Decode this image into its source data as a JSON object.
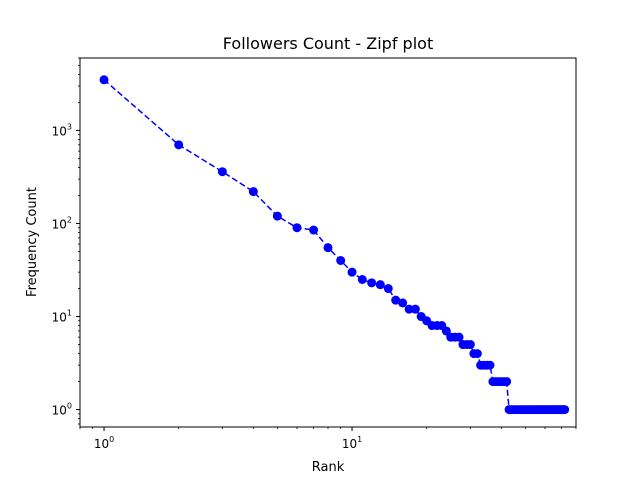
{
  "chart_data": {
    "type": "line",
    "title": "Followers Count - Zipf plot",
    "xlabel": "Rank",
    "ylabel": "Frequency Count",
    "xscale": "log",
    "yscale": "log",
    "xlim": [
      0.8,
      80
    ],
    "ylim": [
      0.65,
      6000
    ],
    "grid": false,
    "line_style": "dashed",
    "marker": "circle",
    "color": "#0000ff",
    "x_ticks": [
      {
        "base": "10",
        "exp": "0",
        "value": 1
      },
      {
        "base": "10",
        "exp": "1",
        "value": 10
      }
    ],
    "y_ticks": [
      {
        "base": "10",
        "exp": "0",
        "value": 1
      },
      {
        "base": "10",
        "exp": "1",
        "value": 10
      },
      {
        "base": "10",
        "exp": "2",
        "value": 100
      },
      {
        "base": "10",
        "exp": "3",
        "value": 1000
      }
    ],
    "series": [
      {
        "x": [
          1,
          2,
          3,
          4,
          5,
          6,
          7,
          8,
          9,
          10,
          11,
          12,
          13,
          14,
          15,
          16,
          17,
          18,
          19,
          20,
          21,
          22,
          23,
          24,
          25,
          26,
          27,
          28,
          29,
          30,
          31,
          32,
          33,
          34,
          35,
          36,
          37,
          38,
          39,
          40,
          41,
          42,
          43,
          44,
          45,
          46,
          47,
          48,
          49,
          50,
          51,
          52,
          53,
          54,
          55,
          56,
          57,
          58,
          59,
          60,
          61,
          62,
          63,
          64,
          65,
          66,
          67,
          68,
          69,
          70,
          71,
          72
        ],
        "y": [
          3500,
          700,
          360,
          220,
          120,
          90,
          85,
          55,
          40,
          30,
          25,
          23,
          22,
          20,
          15,
          14,
          12,
          12,
          10,
          9,
          8,
          8,
          8,
          7,
          6,
          6,
          6,
          5,
          5,
          5,
          4,
          4,
          3,
          3,
          3,
          3,
          2,
          2,
          2,
          2,
          2,
          2,
          1,
          1,
          1,
          1,
          1,
          1,
          1,
          1,
          1,
          1,
          1,
          1,
          1,
          1,
          1,
          1,
          1,
          1,
          1,
          1,
          1,
          1,
          1,
          1,
          1,
          1,
          1,
          1,
          1,
          1
        ]
      }
    ]
  }
}
